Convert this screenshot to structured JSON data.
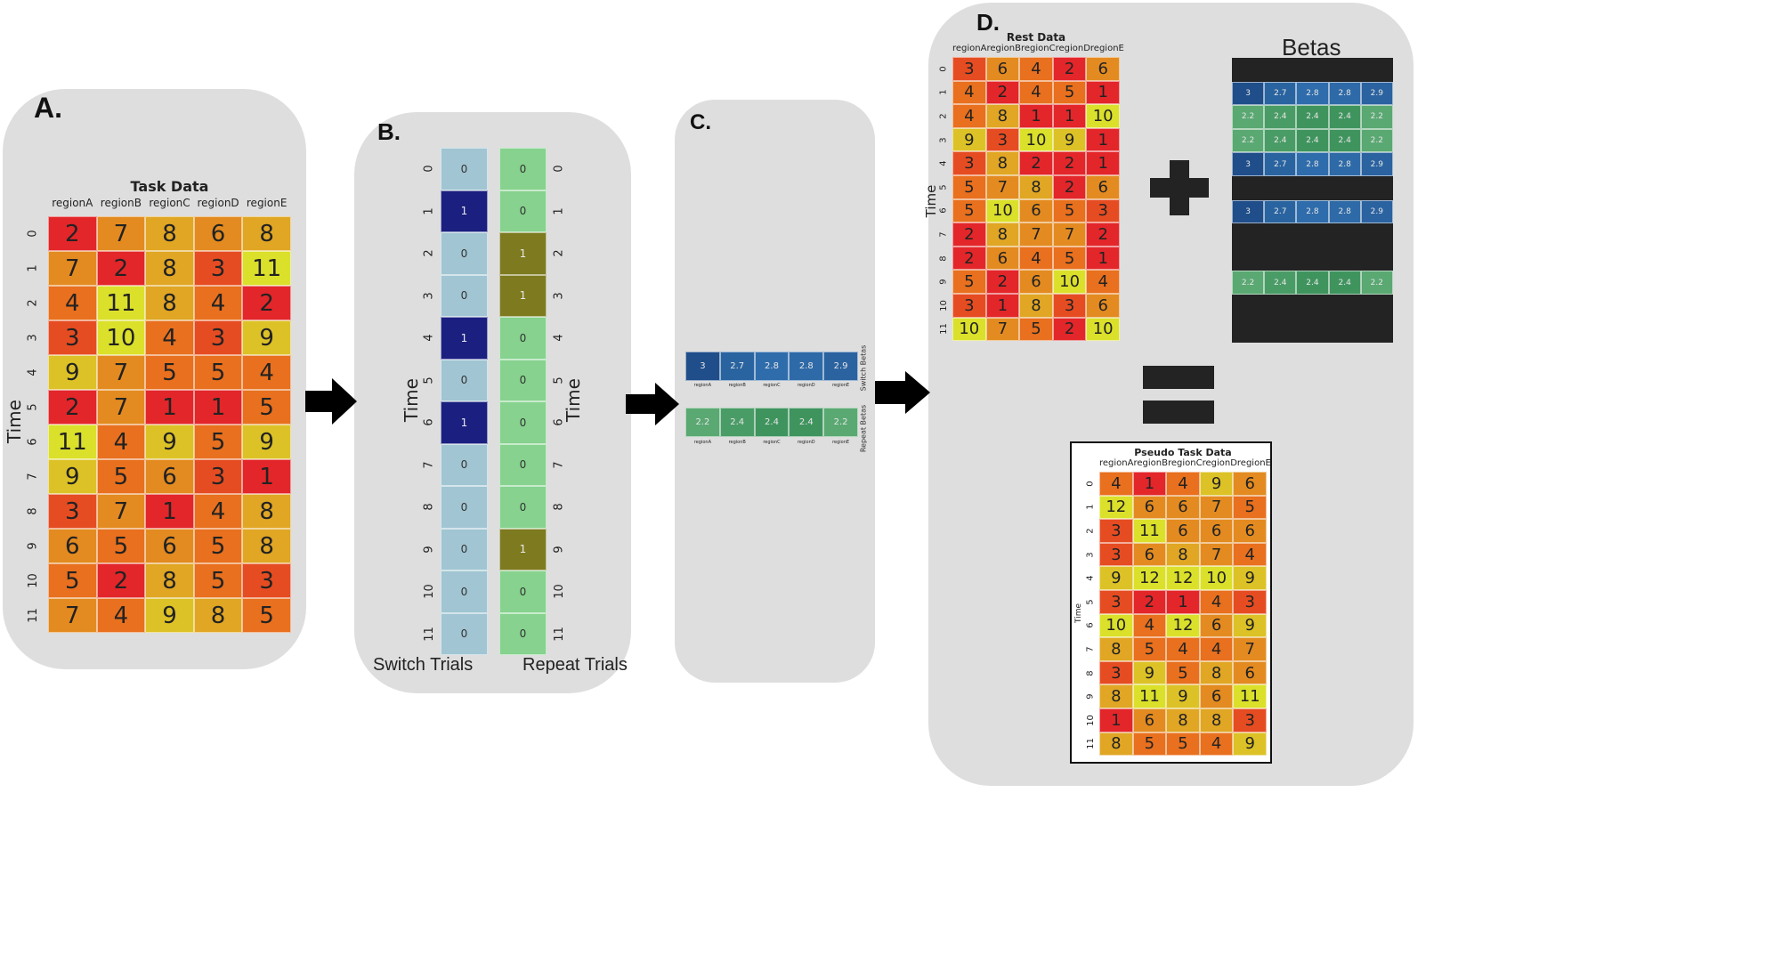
{
  "colors": {
    "panel_bg": "#dedede",
    "heat": [
      "#e3262a",
      "#e64c22",
      "#e8701e",
      "#e38b20",
      "#e0a624",
      "#dcc226",
      "#dbe02a"
    ],
    "switch_zero": "#a1c5d2",
    "switch_one": "#1a1f80",
    "repeat_zero": "#86d28e",
    "repeat_one": "#7d7a20",
    "beta_switch": [
      "#1f4e8a",
      "#2a64a0",
      "#2f6cab",
      "#2e6aa7",
      "#2b62a0"
    ],
    "beta_repeat": [
      "#5aa872",
      "#4a9c66",
      "#3f945e",
      "#3f945e",
      "#5aa872"
    ],
    "block": "#232323"
  },
  "panelA": {
    "label": "A.",
    "title": "Task Data",
    "ylabel": "Time",
    "columns": [
      "regionA",
      "regionB",
      "regionC",
      "regionD",
      "regionE"
    ],
    "rows": [
      "0",
      "1",
      "2",
      "3",
      "4",
      "5",
      "6",
      "7",
      "8",
      "9",
      "10",
      "11"
    ],
    "values": [
      [
        2,
        7,
        8,
        6,
        8
      ],
      [
        7,
        2,
        8,
        3,
        11
      ],
      [
        4,
        11,
        8,
        4,
        2
      ],
      [
        3,
        10,
        4,
        3,
        9
      ],
      [
        9,
        7,
        5,
        5,
        4
      ],
      [
        2,
        7,
        1,
        1,
        5
      ],
      [
        11,
        4,
        9,
        5,
        9
      ],
      [
        9,
        5,
        6,
        3,
        1
      ],
      [
        3,
        7,
        1,
        4,
        8
      ],
      [
        6,
        5,
        6,
        5,
        8
      ],
      [
        5,
        2,
        8,
        5,
        3
      ],
      [
        7,
        4,
        9,
        8,
        5
      ]
    ]
  },
  "panelB": {
    "label": "B.",
    "ylabel_left": "Time",
    "ylabel_right": "Time",
    "switch_label": "Switch Trials",
    "repeat_label": "Repeat Trials",
    "rows": [
      "0",
      "1",
      "2",
      "3",
      "4",
      "5",
      "6",
      "7",
      "8",
      "9",
      "10",
      "11"
    ],
    "switch": [
      0,
      1,
      0,
      0,
      1,
      0,
      1,
      0,
      0,
      0,
      0,
      0
    ],
    "repeat": [
      0,
      0,
      1,
      1,
      0,
      0,
      0,
      0,
      0,
      1,
      0,
      0
    ]
  },
  "panelC": {
    "label": "C.",
    "switch_title": "Switch Betas",
    "repeat_title": "Repeat Betas",
    "columns": [
      "regionA",
      "regionB",
      "regionC",
      "regionD",
      "regionE"
    ],
    "switch_betas": [
      "3",
      "2.7",
      "2.8",
      "2.8",
      "2.9"
    ],
    "repeat_betas": [
      "2.2",
      "2.4",
      "2.4",
      "2.4",
      "2.2"
    ]
  },
  "panelD": {
    "label": "D.",
    "rest_title": "Rest Data",
    "rest_ylabel": "Time",
    "betas_title": "Betas",
    "pseudo_title": "Pseudo Task Data",
    "pseudo_ylabel": "Time",
    "columns": [
      "regionA",
      "regionB",
      "regionC",
      "regionD",
      "regionE"
    ],
    "rows": [
      "0",
      "1",
      "2",
      "3",
      "4",
      "5",
      "6",
      "7",
      "8",
      "9",
      "10",
      "11"
    ],
    "rest_values": [
      [
        3,
        6,
        4,
        2,
        6
      ],
      [
        4,
        2,
        4,
        5,
        1
      ],
      [
        4,
        8,
        1,
        1,
        10
      ],
      [
        9,
        3,
        10,
        9,
        1
      ],
      [
        3,
        8,
        2,
        2,
        1
      ],
      [
        5,
        7,
        8,
        2,
        6
      ],
      [
        5,
        10,
        6,
        5,
        3
      ],
      [
        2,
        8,
        7,
        7,
        2
      ],
      [
        2,
        6,
        4,
        5,
        1
      ],
      [
        5,
        2,
        6,
        10,
        4
      ],
      [
        3,
        1,
        8,
        3,
        6
      ],
      [
        10,
        7,
        5,
        2,
        10
      ]
    ],
    "beta_rows": [
      "none",
      "switch",
      "repeat",
      "repeat",
      "switch",
      "none",
      "switch",
      "none",
      "none",
      "repeat",
      "none",
      "none"
    ],
    "pseudo_values": [
      [
        4,
        1,
        4,
        9,
        6
      ],
      [
        12,
        6,
        6,
        7,
        5
      ],
      [
        3,
        11,
        6,
        6,
        6
      ],
      [
        3,
        6,
        8,
        7,
        4
      ],
      [
        9,
        12,
        12,
        10,
        9
      ],
      [
        3,
        2,
        1,
        4,
        3
      ],
      [
        10,
        4,
        12,
        6,
        9
      ],
      [
        8,
        5,
        4,
        4,
        7
      ],
      [
        3,
        9,
        5,
        8,
        6
      ],
      [
        8,
        11,
        9,
        6,
        11
      ],
      [
        1,
        6,
        8,
        8,
        3
      ],
      [
        8,
        5,
        5,
        4,
        9
      ]
    ]
  }
}
